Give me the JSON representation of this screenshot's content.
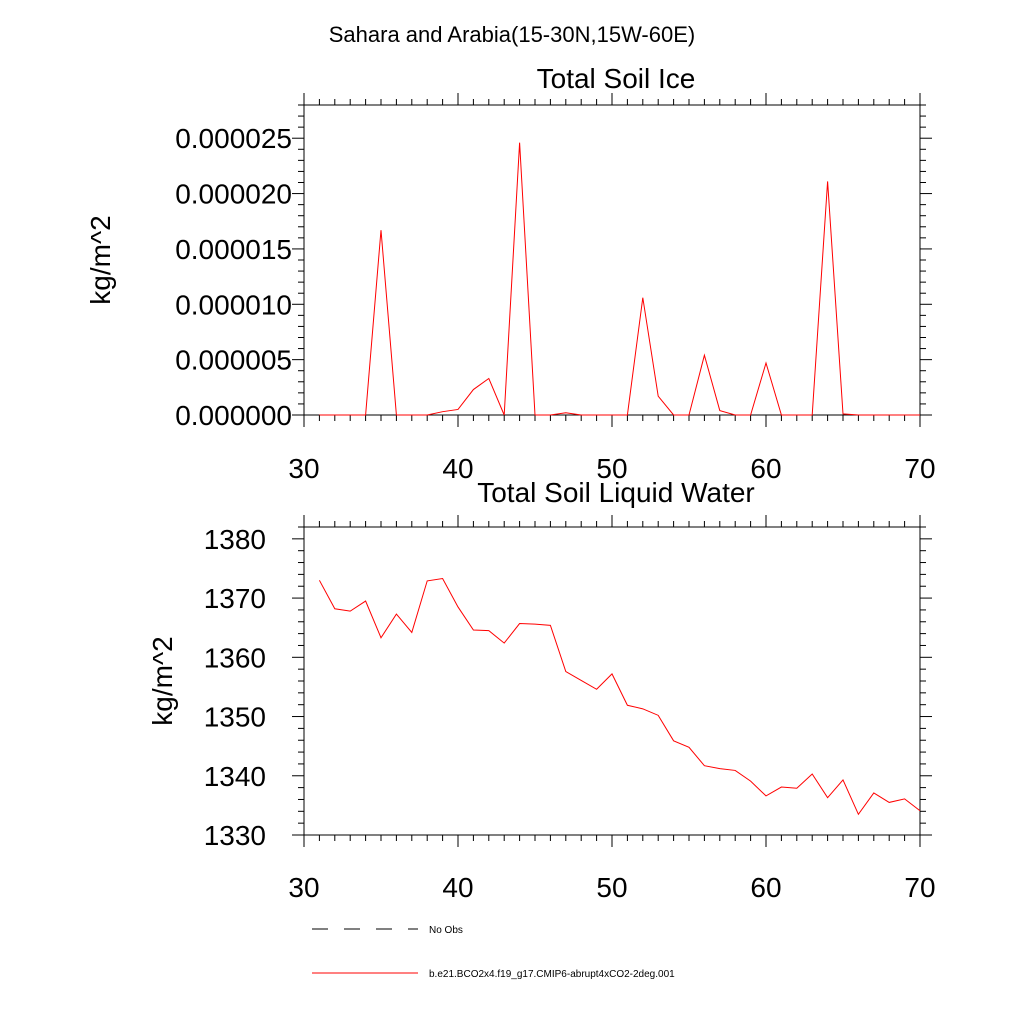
{
  "figure": {
    "suptitle": "Sahara and Arabia(15-30N,15W-60E)"
  },
  "legend": [
    {
      "label": "No Obs",
      "color": "#000000",
      "style": "dashed"
    },
    {
      "label": "b.e21.BCO2x4.f19_g17.CMIP6-abrupt4xCO2-2deg.001",
      "color": "#ff0000",
      "style": "solid"
    }
  ],
  "chart_data": [
    {
      "type": "line",
      "title": "Total Soil Ice",
      "ylabel": "kg/m^2",
      "xlabel": "",
      "xlim": [
        30,
        70
      ],
      "ylim": [
        0,
        2.8e-05
      ],
      "xticks": [
        30,
        40,
        50,
        60,
        70
      ],
      "xtick_labels": [
        "30",
        "40",
        "50",
        "60",
        "70"
      ],
      "yticks": [
        0,
        5e-06,
        1e-05,
        1.5e-05,
        2e-05,
        2.5e-05
      ],
      "ytick_labels": [
        "0.000000",
        "0.000005",
        "0.000010",
        "0.000015",
        "0.000020",
        "0.000025"
      ],
      "grid": false,
      "series": [
        {
          "name": "b.e21.BCO2x4.f19_g17.CMIP6-abrupt4xCO2-2deg.001",
          "color": "#ff0000",
          "x": [
            31,
            32,
            33,
            34,
            35,
            36,
            37,
            38,
            39,
            40,
            41,
            42,
            43,
            44,
            45,
            46,
            47,
            48,
            49,
            50,
            51,
            52,
            53,
            54,
            55,
            56,
            57,
            58,
            59,
            60,
            61,
            62,
            63,
            64,
            65,
            66,
            67,
            68,
            69,
            70
          ],
          "y": [
            0,
            0,
            0,
            0,
            1.67e-05,
            0,
            0,
            0,
            3e-07,
            5e-07,
            2.3e-06,
            3.3e-06,
            0,
            2.46e-05,
            0,
            0,
            2e-07,
            0,
            0,
            0,
            0,
            1.06e-05,
            1.7e-06,
            0,
            0,
            5.4e-06,
            4e-07,
            0,
            0,
            4.7e-06,
            0,
            0,
            0,
            2.11e-05,
            1e-07,
            0,
            0,
            0,
            0,
            0
          ]
        }
      ]
    },
    {
      "type": "line",
      "title": "Total Soil Liquid Water",
      "ylabel": "kg/m^2",
      "xlabel": "",
      "xlim": [
        30,
        70
      ],
      "ylim": [
        1330,
        1382
      ],
      "xticks": [
        30,
        40,
        50,
        60,
        70
      ],
      "xtick_labels": [
        "30",
        "40",
        "50",
        "60",
        "70"
      ],
      "yticks": [
        1330,
        1340,
        1350,
        1360,
        1370,
        1380
      ],
      "ytick_labels": [
        "1330",
        "1340",
        "1350",
        "1360",
        "1370",
        "1380"
      ],
      "grid": false,
      "series": [
        {
          "name": "b.e21.BCO2x4.f19_g17.CMIP6-abrupt4xCO2-2deg.001",
          "color": "#ff0000",
          "x": [
            31,
            32,
            33,
            34,
            35,
            36,
            37,
            38,
            39,
            40,
            41,
            42,
            43,
            44,
            45,
            46,
            47,
            48,
            49,
            50,
            51,
            52,
            53,
            54,
            55,
            56,
            57,
            58,
            59,
            60,
            61,
            62,
            63,
            64,
            65,
            66,
            67,
            68,
            69,
            70
          ],
          "y": [
            1373,
            1368.2,
            1367.8,
            1369.5,
            1363.3,
            1367.3,
            1364.2,
            1372.9,
            1373.3,
            1368.5,
            1364.6,
            1364.5,
            1362.4,
            1365.7,
            1365.6,
            1365.4,
            1357.6,
            1356.1,
            1354.6,
            1357.2,
            1351.9,
            1351.3,
            1350.2,
            1345.9,
            1344.8,
            1341.7,
            1341.2,
            1340.9,
            1339.1,
            1336.6,
            1338.1,
            1337.9,
            1340.3,
            1336.3,
            1339.3,
            1333.5,
            1337.1,
            1335.5,
            1336.1,
            1334.1
          ]
        }
      ]
    }
  ]
}
